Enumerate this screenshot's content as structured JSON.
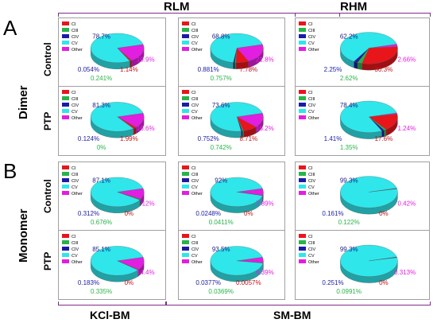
{
  "panels": {
    "a": "A",
    "b": "B"
  },
  "headers": {
    "rlm": "RLM",
    "rhm": "RHM"
  },
  "footers": {
    "kcl": "KCl-BM",
    "sm": "SM-BM"
  },
  "groups": {
    "dimer": "Dimer",
    "monomer": "Monomer"
  },
  "rows": {
    "control": "Control",
    "ptp": "PTP"
  },
  "legend": [
    "CI",
    "CIII",
    "CIV",
    "CV",
    "Other"
  ],
  "colors": {
    "CI": "#e8151b",
    "CIII": "#29b34a",
    "CIV": "#1b1ba6",
    "CV": "#2fe6ea",
    "Other": "#e21ee0",
    "bracket": "#7d2e86"
  },
  "chart_data": [
    {
      "type": "pie",
      "id": "dimer-control-kcl",
      "slices": {
        "CI": 1.14,
        "CIII": 0.241,
        "CIV": 0.054,
        "CV": 78.7,
        "Other": 19.9
      },
      "labels": {
        "CI": "1.14%",
        "CIII": "0.241%",
        "CIV": "0.054%",
        "CV": "78.7%",
        "Other": "19.9%"
      }
    },
    {
      "type": "pie",
      "id": "dimer-control-sm",
      "slices": {
        "CI": 7.78,
        "CIII": 0.757,
        "CIV": 0.881,
        "CV": 68.8,
        "Other": 21.8
      },
      "labels": {
        "CI": "7.78%",
        "CIII": "0.757%",
        "CIV": "0.881%",
        "CV": "68.8%",
        "Other": "21.8%"
      }
    },
    {
      "type": "pie",
      "id": "dimer-control-rhm",
      "slices": {
        "CI": 30.3,
        "CIII": 2.62,
        "CIV": 2.25,
        "CV": 62.2,
        "Other": 2.66
      },
      "labels": {
        "CI": "30.3%",
        "CIII": "2.62%",
        "CIV": "2.25%",
        "CV": "62.2%",
        "Other": "2.66%"
      }
    },
    {
      "type": "pie",
      "id": "dimer-ptp-kcl",
      "slices": {
        "CI": 1.99,
        "CIII": 0,
        "CIV": 0.124,
        "CV": 81.3,
        "Other": 16.6
      },
      "labels": {
        "CI": "1.99%",
        "CIII": "0%",
        "CIV": "0.124%",
        "CV": "81.3%",
        "Other": "16.6%"
      }
    },
    {
      "type": "pie",
      "id": "dimer-ptp-sm",
      "slices": {
        "CI": 8.71,
        "CIII": 0.742,
        "CIV": 0.752,
        "CV": 73.6,
        "Other": 16.2
      },
      "labels": {
        "CI": "8.71%",
        "CIII": "0.742%",
        "CIV": "0.752%",
        "CV": "73.6%",
        "Other": "16.2%"
      }
    },
    {
      "type": "pie",
      "id": "dimer-ptp-rhm",
      "slices": {
        "CI": 17.6,
        "CIII": 1.35,
        "CIV": 1.41,
        "CV": 78.4,
        "Other": 1.24
      },
      "labels": {
        "CI": "17.6%",
        "CIII": "1.35%",
        "CIV": "1.41%",
        "CV": "78.4%",
        "Other": "1.24%"
      }
    },
    {
      "type": "pie",
      "id": "monomer-control-kcl",
      "slices": {
        "CI": 0,
        "CIII": 0.676,
        "CIV": 0.312,
        "CV": 87.1,
        "Other": 12
      },
      "labels": {
        "CI": "0%",
        "CIII": "0.676%",
        "CIV": "0.312%",
        "CV": "87.1%",
        "Other": "12%"
      }
    },
    {
      "type": "pie",
      "id": "monomer-control-sm",
      "slices": {
        "CI": 0,
        "CIII": 0.0411,
        "CIV": 0.0248,
        "CV": 92,
        "Other": 7.89
      },
      "labels": {
        "CI": "0%",
        "CIII": "0.0411%",
        "CIV": "0.0248%",
        "CV": "92%",
        "Other": "7.89%"
      }
    },
    {
      "type": "pie",
      "id": "monomer-control-rhm",
      "slices": {
        "CI": 0,
        "CIII": 0.122,
        "CIV": 0.161,
        "CV": 99.3,
        "Other": 0.42
      },
      "labels": {
        "CI": "0%",
        "CIII": "0.122%",
        "CIV": "0.161%",
        "CV": "99.3%",
        "Other": "0.42%"
      }
    },
    {
      "type": "pie",
      "id": "monomer-ptp-kcl",
      "slices": {
        "CI": 0,
        "CIII": 0.335,
        "CIV": 0.183,
        "CV": 85.1,
        "Other": 14.4
      },
      "labels": {
        "CI": "0%",
        "CIII": "0.335%",
        "CIV": "0.183%",
        "CV": "85.1%",
        "Other": "14.4%"
      }
    },
    {
      "type": "pie",
      "id": "monomer-ptp-sm",
      "slices": {
        "CI": 0.0057,
        "CIII": 0.0369,
        "CIV": 0.0377,
        "CV": 93.5,
        "Other": 6.39
      },
      "labels": {
        "CI": "0.0057%",
        "CIII": "0.0369%",
        "CIV": "0.0377%",
        "CV": "93.5%",
        "Other": "6.39%"
      }
    },
    {
      "type": "pie",
      "id": "monomer-ptp-rhm",
      "slices": {
        "CI": 0,
        "CIII": 0.0991,
        "CIV": 0.251,
        "CV": 99.3,
        "Other": 0.313
      },
      "labels": {
        "CI": "0%",
        "CIII": "0.0991%",
        "CIV": "0.251%",
        "CV": "99.3%",
        "Other": "0.313%"
      }
    }
  ]
}
